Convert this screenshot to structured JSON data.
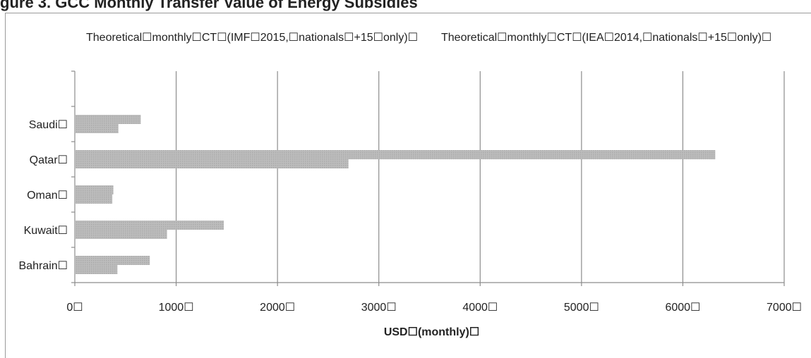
{
  "page": {
    "clipped_title": "gure 3. GCC Monthly Transfer Value of Energy Subsidies"
  },
  "chart_data": {
    "type": "bar",
    "orientation": "horizontal",
    "categories": [
      "Bahrain",
      "Kuwait",
      "Oman",
      "Qatar",
      "Saudi"
    ],
    "category_labels": [
      "Bahrain☐",
      "Kuwait☐",
      "Oman☐",
      "Qatar☐",
      "Saudi☐"
    ],
    "series": [
      {
        "name": "Theoretical☐monthly☐CT☐(IMF☐2015,☐nationals☐+15☐only)☐",
        "values": [
          740,
          1470,
          380,
          6320,
          650
        ]
      },
      {
        "name": "Theoretical☐monthly☐CT☐(IEA☐2014,☐nationals☐+15☐only)☐",
        "values": [
          420,
          910,
          370,
          2700,
          430
        ]
      }
    ],
    "xlim": [
      0,
      7000
    ],
    "xticks": [
      0,
      1000,
      2000,
      3000,
      4000,
      5000,
      6000,
      7000
    ],
    "xtick_labels": [
      "0☐",
      "1000☐",
      "2000☐",
      "3000☐",
      "4000☐",
      "5000☐",
      "6000☐",
      "7000☐"
    ],
    "xlabel": "USD☐(monthly)☐",
    "ylabel": "",
    "grid": "vertical",
    "legend": "top",
    "bar_color": "#b4b4b4"
  }
}
